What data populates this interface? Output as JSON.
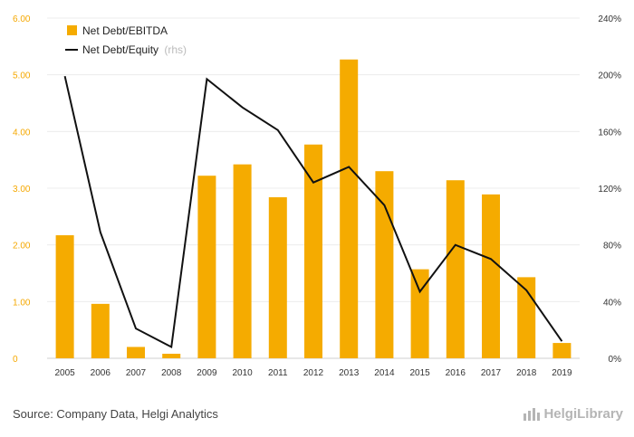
{
  "chart_data": {
    "type": "bar",
    "categories": [
      "2005",
      "2006",
      "2007",
      "2008",
      "2009",
      "2010",
      "2011",
      "2012",
      "2013",
      "2014",
      "2015",
      "2016",
      "2017",
      "2018",
      "2019"
    ],
    "series": [
      {
        "name": "Net Debt/EBITDA",
        "type": "bar",
        "axis": "left",
        "color": "#f5ab00",
        "values": [
          2.17,
          0.96,
          0.2,
          0.08,
          3.22,
          3.42,
          2.84,
          3.77,
          5.27,
          3.3,
          1.57,
          3.14,
          2.89,
          1.43,
          0.27
        ]
      },
      {
        "name": "Net Debt/Equity",
        "name_suffix": "(rhs)",
        "type": "line",
        "axis": "right",
        "color": "#111111",
        "values": [
          199,
          89,
          21,
          8,
          197,
          177,
          161,
          124,
          135,
          108,
          47,
          80,
          70,
          48,
          12
        ]
      }
    ],
    "y_left": {
      "range": [
        0,
        6
      ],
      "ticks": [
        "0",
        "1.00",
        "2.00",
        "3.00",
        "4.00",
        "5.00",
        "6.00"
      ],
      "tick_values": [
        0,
        1,
        2,
        3,
        4,
        5,
        6
      ]
    },
    "y_right": {
      "range": [
        0,
        240
      ],
      "ticks": [
        "0%",
        "40%",
        "80%",
        "120%",
        "160%",
        "200%",
        "240%"
      ],
      "tick_values": [
        0,
        40,
        80,
        120,
        160,
        200,
        240
      ]
    },
    "grid": true,
    "legend": "top-left"
  },
  "footer": {
    "source": "Source: Company Data, Helgi Analytics",
    "brand": "HelgiLibrary"
  }
}
